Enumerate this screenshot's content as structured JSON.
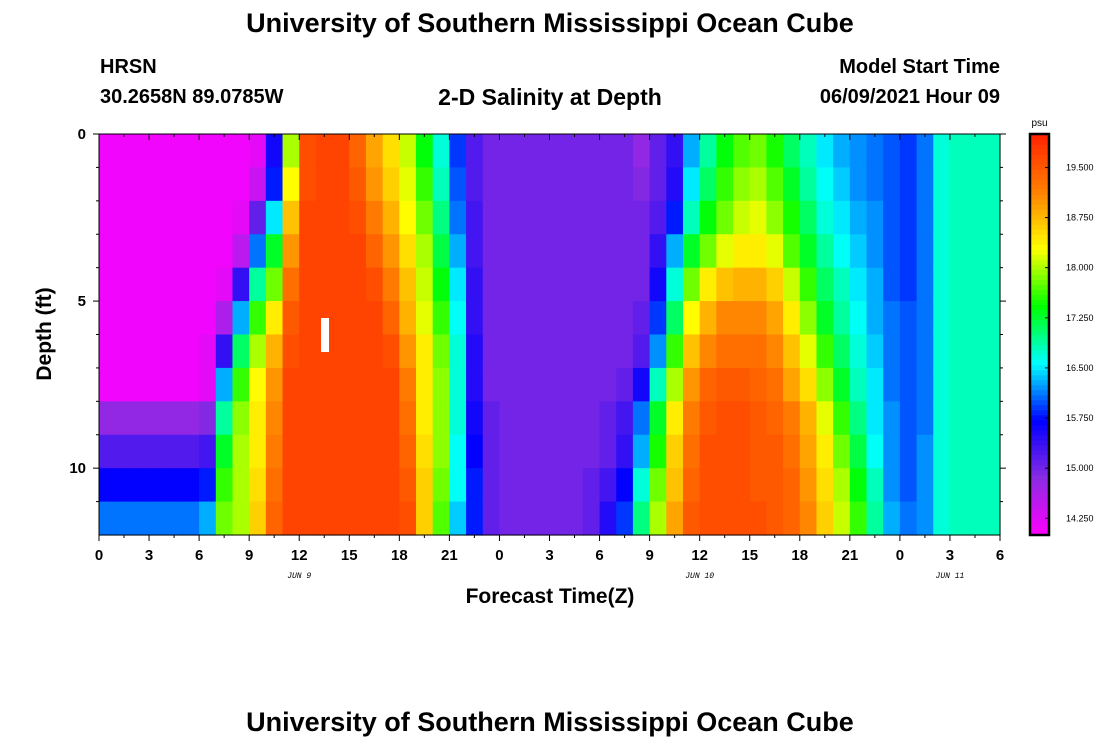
{
  "header": {
    "title": "University of Southern Mississippi Ocean Cube",
    "station": "HRSN",
    "coords": "30.2658N  89.0785W",
    "subtitle": "2-D Salinity at Depth",
    "start_label": "Model Start Time",
    "start_value": "06/09/2021 Hour 09"
  },
  "footer": {
    "title": "University of Southern Mississippi Ocean Cube"
  },
  "chart_data": {
    "type": "heatmap",
    "title": "2-D Salinity at Depth",
    "xlabel": "Forecast Time(Z)",
    "ylabel": "Depth (ft)",
    "x_tick_labels": [
      "0",
      "3",
      "6",
      "9",
      "12",
      "15",
      "18",
      "21",
      "0",
      "3",
      "6",
      "9",
      "12",
      "15",
      "18",
      "21",
      "0",
      "3",
      "6"
    ],
    "x_range_hours": [
      0,
      54
    ],
    "date_labels": [
      {
        "text": "JUN 9",
        "at_hour": 12
      },
      {
        "text": "JUN 10",
        "at_hour": 36
      },
      {
        "text": "JUN 11",
        "at_hour": 51
      }
    ],
    "y_tick_labels": [
      "0",
      "5",
      "10"
    ],
    "y_range_ft": [
      0,
      12
    ],
    "colorbar": {
      "unit": "psu",
      "ticks": [
        "19.500",
        "18.750",
        "18.000",
        "17.250",
        "16.500",
        "15.750",
        "15.000",
        "14.250"
      ],
      "range": [
        14.0,
        20.0
      ],
      "colors": [
        "#ff00ff",
        "#8a2be2",
        "#0000ff",
        "#00ffff",
        "#00ff00",
        "#ffff00",
        "#ff8000",
        "#ff2200"
      ]
    },
    "depth_levels": 12,
    "time_step_hours": 1,
    "values_psu_by_hour_and_depth": [
      [
        14.1,
        14.1,
        14.1,
        14.1,
        14.1,
        14.1,
        14.1,
        14.1,
        14.8,
        15.2,
        15.7,
        16.1
      ],
      [
        14.1,
        14.1,
        14.1,
        14.1,
        14.1,
        14.1,
        14.1,
        14.1,
        14.8,
        15.2,
        15.7,
        16.1
      ],
      [
        14.1,
        14.1,
        14.1,
        14.1,
        14.1,
        14.1,
        14.1,
        14.1,
        14.8,
        15.2,
        15.7,
        16.1
      ],
      [
        14.1,
        14.1,
        14.1,
        14.1,
        14.1,
        14.1,
        14.1,
        14.1,
        14.8,
        15.2,
        15.7,
        16.1
      ],
      [
        14.1,
        14.1,
        14.1,
        14.1,
        14.1,
        14.1,
        14.1,
        14.1,
        14.8,
        15.2,
        15.7,
        16.1
      ],
      [
        14.1,
        14.1,
        14.1,
        14.1,
        14.1,
        14.1,
        14.1,
        14.1,
        14.8,
        15.2,
        15.7,
        16.1
      ],
      [
        14.1,
        14.1,
        14.1,
        14.1,
        14.1,
        14.1,
        14.2,
        14.2,
        14.9,
        15.3,
        15.8,
        16.3
      ],
      [
        14.1,
        14.1,
        14.1,
        14.1,
        14.2,
        14.6,
        15.4,
        16.3,
        16.9,
        17.3,
        17.6,
        17.8
      ],
      [
        14.1,
        14.1,
        14.2,
        14.5,
        15.4,
        16.3,
        17.1,
        17.6,
        17.9,
        18.0,
        18.0,
        18.0
      ],
      [
        14.2,
        14.4,
        15.1,
        16.1,
        16.9,
        17.6,
        18.0,
        18.3,
        18.4,
        18.4,
        18.5,
        18.6
      ],
      [
        15.6,
        15.8,
        16.5,
        17.3,
        17.8,
        18.4,
        18.8,
        19.0,
        19.1,
        19.2,
        19.3,
        19.4
      ],
      [
        18.0,
        18.3,
        18.7,
        19.0,
        19.3,
        19.5,
        19.6,
        19.7,
        19.7,
        19.7,
        19.7,
        19.7
      ],
      [
        19.6,
        19.6,
        19.7,
        19.7,
        19.7,
        19.7,
        19.7,
        19.7,
        19.7,
        19.7,
        19.7,
        19.7
      ],
      [
        19.7,
        19.7,
        19.7,
        19.7,
        19.7,
        19.7,
        19.7,
        19.7,
        19.7,
        19.7,
        19.7,
        19.7
      ],
      [
        19.7,
        19.7,
        19.7,
        19.7,
        19.7,
        19.7,
        19.7,
        19.7,
        19.7,
        19.7,
        19.7,
        19.7
      ],
      [
        19.4,
        19.5,
        19.6,
        19.7,
        19.7,
        19.7,
        19.7,
        19.7,
        19.7,
        19.7,
        19.7,
        19.7
      ],
      [
        18.9,
        19.0,
        19.2,
        19.4,
        19.6,
        19.7,
        19.7,
        19.7,
        19.7,
        19.7,
        19.7,
        19.7
      ],
      [
        18.5,
        18.6,
        18.8,
        19.0,
        19.2,
        19.4,
        19.6,
        19.7,
        19.7,
        19.7,
        19.7,
        19.7
      ],
      [
        18.1,
        18.2,
        18.3,
        18.5,
        18.7,
        18.8,
        19.0,
        19.2,
        19.3,
        19.4,
        19.5,
        19.6
      ],
      [
        17.4,
        17.6,
        17.8,
        18.0,
        18.1,
        18.2,
        18.4,
        18.4,
        18.4,
        18.5,
        18.6,
        18.6
      ],
      [
        16.7,
        16.8,
        17.0,
        17.2,
        17.4,
        17.6,
        17.8,
        17.9,
        17.9,
        17.9,
        17.8,
        17.7
      ],
      [
        15.9,
        16.0,
        16.1,
        16.3,
        16.5,
        16.6,
        16.7,
        16.7,
        16.7,
        16.6,
        16.6,
        16.4
      ],
      [
        15.2,
        15.2,
        15.3,
        15.3,
        15.4,
        15.4,
        15.5,
        15.5,
        15.6,
        15.7,
        15.8,
        15.8
      ],
      [
        15.0,
        15.0,
        15.0,
        15.0,
        15.0,
        15.0,
        15.0,
        15.0,
        15.1,
        15.1,
        15.1,
        15.1
      ],
      [
        15.0,
        15.0,
        15.0,
        15.0,
        15.0,
        15.0,
        15.0,
        15.0,
        15.0,
        15.0,
        15.0,
        15.0
      ],
      [
        15.0,
        15.0,
        15.0,
        15.0,
        15.0,
        15.0,
        15.0,
        15.0,
        15.0,
        15.0,
        15.0,
        15.0
      ],
      [
        15.0,
        15.0,
        15.0,
        15.0,
        15.0,
        15.0,
        15.0,
        15.0,
        15.0,
        15.0,
        15.0,
        15.0
      ],
      [
        15.0,
        15.0,
        15.0,
        15.0,
        15.0,
        15.0,
        15.0,
        15.0,
        15.0,
        15.0,
        15.0,
        15.0
      ],
      [
        15.0,
        15.0,
        15.0,
        15.0,
        15.0,
        15.0,
        15.0,
        15.0,
        15.0,
        15.0,
        15.0,
        15.0
      ],
      [
        15.0,
        15.0,
        15.0,
        15.0,
        15.0,
        15.0,
        15.0,
        15.0,
        15.0,
        15.0,
        15.1,
        15.1
      ],
      [
        15.0,
        15.0,
        15.0,
        15.0,
        15.0,
        15.0,
        15.0,
        15.0,
        15.1,
        15.1,
        15.3,
        15.5
      ],
      [
        15.0,
        15.0,
        15.0,
        15.0,
        15.0,
        15.0,
        15.0,
        15.1,
        15.3,
        15.4,
        15.7,
        15.9
      ],
      [
        14.8,
        14.9,
        15.0,
        15.0,
        15.0,
        15.1,
        15.2,
        15.6,
        16.1,
        16.3,
        16.7,
        17.0
      ],
      [
        15.1,
        15.1,
        15.2,
        15.4,
        15.6,
        15.9,
        16.2,
        16.8,
        17.3,
        17.5,
        17.8,
        18.0
      ],
      [
        15.4,
        15.5,
        15.8,
        16.3,
        16.7,
        17.1,
        17.6,
        18.0,
        18.4,
        18.6,
        18.7,
        18.9
      ],
      [
        16.3,
        16.5,
        16.8,
        17.3,
        17.8,
        18.3,
        18.7,
        19.0,
        19.2,
        19.3,
        19.4,
        19.5
      ],
      [
        16.9,
        17.1,
        17.4,
        17.8,
        18.4,
        18.8,
        19.1,
        19.4,
        19.5,
        19.6,
        19.6,
        19.6
      ],
      [
        17.4,
        17.6,
        17.8,
        18.2,
        18.7,
        19.1,
        19.3,
        19.5,
        19.6,
        19.6,
        19.6,
        19.6
      ],
      [
        17.7,
        17.9,
        18.1,
        18.4,
        18.8,
        19.1,
        19.3,
        19.5,
        19.6,
        19.6,
        19.6,
        19.6
      ],
      [
        17.8,
        18.0,
        18.2,
        18.4,
        18.8,
        19.1,
        19.3,
        19.4,
        19.5,
        19.5,
        19.5,
        19.6
      ],
      [
        17.5,
        17.7,
        17.9,
        18.2,
        18.6,
        18.9,
        19.1,
        19.3,
        19.4,
        19.5,
        19.5,
        19.5
      ],
      [
        17.1,
        17.3,
        17.5,
        17.7,
        18.1,
        18.4,
        18.7,
        18.9,
        19.2,
        19.3,
        19.4,
        19.4
      ],
      [
        16.8,
        16.9,
        17.1,
        17.3,
        17.6,
        17.9,
        18.2,
        18.5,
        18.8,
        18.9,
        19.0,
        19.1
      ],
      [
        16.5,
        16.6,
        16.7,
        16.9,
        17.1,
        17.3,
        17.6,
        17.9,
        18.2,
        18.4,
        18.5,
        18.6
      ],
      [
        16.3,
        16.4,
        16.5,
        16.6,
        16.8,
        16.9,
        17.1,
        17.3,
        17.6,
        17.8,
        18.0,
        18.1
      ],
      [
        16.2,
        16.2,
        16.3,
        16.4,
        16.5,
        16.6,
        16.7,
        16.8,
        17.0,
        17.2,
        17.4,
        17.6
      ],
      [
        16.1,
        16.1,
        16.2,
        16.2,
        16.3,
        16.3,
        16.4,
        16.5,
        16.5,
        16.6,
        16.8,
        16.9
      ],
      [
        16.0,
        16.0,
        16.0,
        16.0,
        16.0,
        16.1,
        16.1,
        16.1,
        16.2,
        16.2,
        16.2,
        16.3
      ],
      [
        15.9,
        15.9,
        15.9,
        15.9,
        15.9,
        16.0,
        16.0,
        16.0,
        16.0,
        16.0,
        16.0,
        16.1
      ],
      [
        16.1,
        16.1,
        16.1,
        16.1,
        16.1,
        16.1,
        16.1,
        16.1,
        16.1,
        16.2,
        16.2,
        16.2
      ],
      [
        16.7,
        16.7,
        16.7,
        16.7,
        16.7,
        16.7,
        16.7,
        16.7,
        16.7,
        16.7,
        16.7,
        16.7
      ],
      [
        16.8,
        16.8,
        16.8,
        16.8,
        16.8,
        16.8,
        16.8,
        16.8,
        16.8,
        16.8,
        16.8,
        16.8
      ],
      [
        16.8,
        16.8,
        16.8,
        16.8,
        16.8,
        16.8,
        16.8,
        16.8,
        16.8,
        16.8,
        16.8,
        16.8
      ],
      [
        16.8,
        16.8,
        16.8,
        16.8,
        16.8,
        16.8,
        16.8,
        16.8,
        16.8,
        16.8,
        16.8,
        16.8
      ]
    ]
  }
}
